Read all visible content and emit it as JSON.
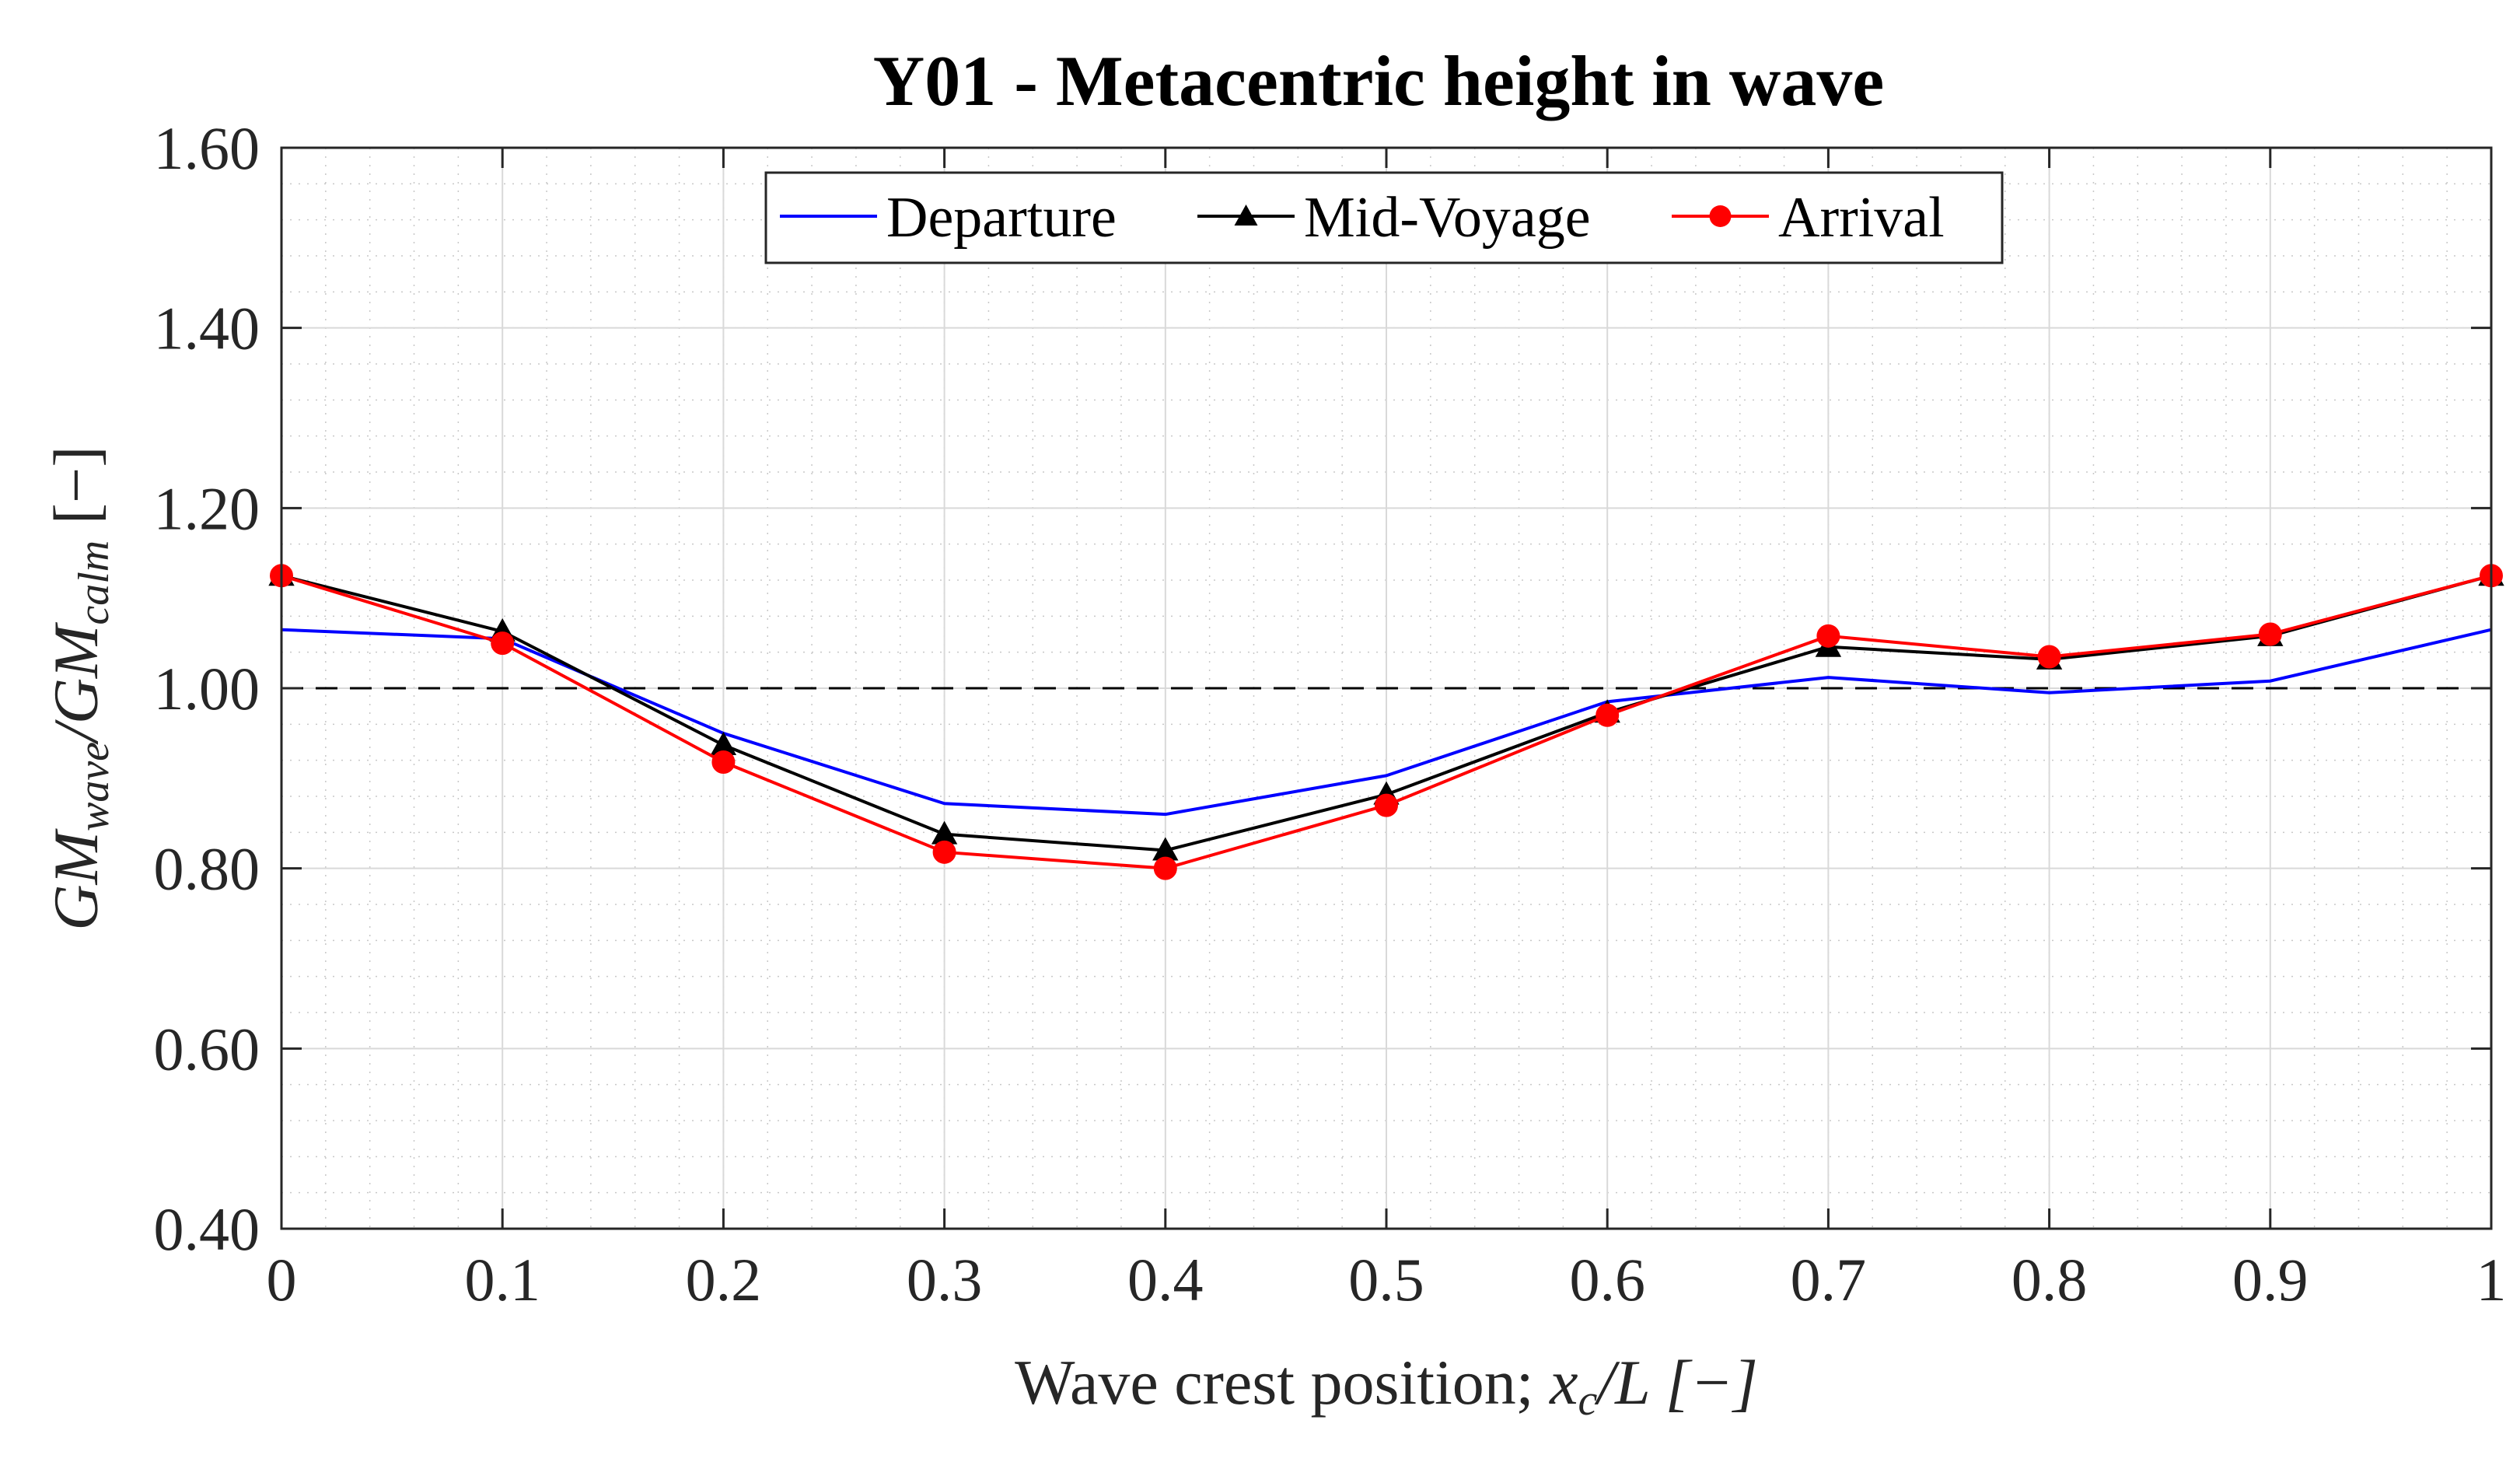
{
  "chart_data": {
    "type": "line",
    "title": "Y01 - Metacentric height in wave",
    "xlabel": "Wave crest position; x_c/L [−]",
    "xlabel_parts": {
      "prefix": "Wave crest position; ",
      "var": "x",
      "sub": "c",
      "suffix": "/L [−]"
    },
    "ylabel": "GM_wave/GM_calm [−]",
    "ylabel_parts": {
      "gm1": "GM",
      "sub1": "wave",
      "slash": "/GM",
      "sub2": "calm",
      "suffix": " [−]"
    },
    "xlim": [
      0,
      1
    ],
    "ylim": [
      0.4,
      1.6
    ],
    "x_ticks": [
      0,
      0.1,
      0.2,
      0.3,
      0.4,
      0.5,
      0.6,
      0.7,
      0.8,
      0.9,
      1
    ],
    "x_tick_labels": [
      "0",
      "0.1",
      "0.2",
      "0.3",
      "0.4",
      "0.5",
      "0.6",
      "0.7",
      "0.8",
      "0.9",
      "1"
    ],
    "y_ticks": [
      0.4,
      0.6,
      0.8,
      1.0,
      1.2,
      1.4,
      1.6
    ],
    "y_tick_labels": [
      "0.40",
      "0.60",
      "0.80",
      "1.00",
      "1.20",
      "1.40",
      "1.60"
    ],
    "grid": true,
    "minor_grid": true,
    "reference_line": {
      "y": 1.0,
      "style": "dashed",
      "color": "#000000"
    },
    "legend_position": "top-center",
    "x": [
      0,
      0.1,
      0.2,
      0.3,
      0.4,
      0.5,
      0.6,
      0.7,
      0.8,
      0.9,
      1.0
    ],
    "series": [
      {
        "name": "Departure",
        "color": "#0000ff",
        "marker": "none",
        "values": [
          1.065,
          1.055,
          0.95,
          0.872,
          0.86,
          0.903,
          0.985,
          1.012,
          0.995,
          1.008,
          1.065
        ]
      },
      {
        "name": "Mid-Voyage",
        "color": "#000000",
        "marker": "triangle",
        "values": [
          1.125,
          1.063,
          0.937,
          0.838,
          0.82,
          0.882,
          0.973,
          1.046,
          1.032,
          1.058,
          1.125
        ]
      },
      {
        "name": "Arrival",
        "color": "#ff0000",
        "marker": "circle",
        "values": [
          1.125,
          1.05,
          0.918,
          0.818,
          0.8,
          0.87,
          0.97,
          1.058,
          1.035,
          1.06,
          1.125
        ]
      }
    ]
  }
}
